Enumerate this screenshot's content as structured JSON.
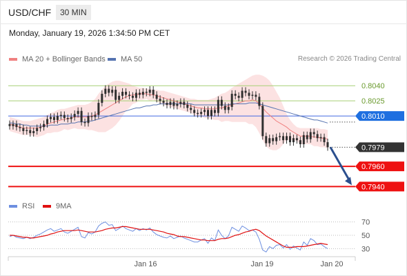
{
  "header": {
    "symbol": "USD/CHF",
    "timeframe": "30 MIN",
    "datetime": "Monday, January 19, 2026 1:34:50 PM CET",
    "credit": "Research © 2026 Trading Central"
  },
  "colors": {
    "bollinger_line": "#f08080",
    "bollinger_band": "#fbd8d8",
    "ma50": "#5573b0",
    "candle": "#2f2f2f",
    "support_line": "#ee1111",
    "pivot_line": "#4169e1",
    "green_line": "#a6cf74",
    "arrow": "#2b4f8e",
    "rsi": "#6d8fe0",
    "rsi_ma": "#e01010"
  },
  "chart_data": [
    {
      "type": "candlestick",
      "legend": [
        {
          "name": "MA 20 + Bollinger Bands",
          "color": "#f08080"
        },
        {
          "name": "MA 50",
          "color": "#5573b0"
        }
      ],
      "x_ticks": [
        "Jan 16",
        "Jan 19",
        "Jan 20"
      ],
      "ylim": [
        0.793,
        0.806
      ],
      "levels": [
        {
          "value": 0.804,
          "label": "0.8040",
          "kind": "resistance"
        },
        {
          "value": 0.8025,
          "label": "0.8025",
          "kind": "resistance"
        },
        {
          "value": 0.801,
          "label": "0.8010",
          "kind": "pivot"
        },
        {
          "value": 0.7979,
          "label": "0.7979",
          "kind": "last"
        },
        {
          "value": 0.796,
          "label": "0.7960",
          "kind": "support"
        },
        {
          "value": 0.794,
          "label": "0.7940",
          "kind": "support"
        }
      ],
      "forecast_arrow": {
        "from": 0.7979,
        "to": 0.794
      },
      "close": [
        0.8,
        0.8002,
        0.7999,
        0.7998,
        0.7995,
        0.7996,
        0.7993,
        0.7995,
        0.7998,
        0.7999,
        0.8002,
        0.8007,
        0.8009,
        0.8006,
        0.801,
        0.8011,
        0.8008,
        0.8007,
        0.8009,
        0.8012,
        0.8015,
        0.8004,
        0.8003,
        0.801,
        0.8009,
        0.8011,
        0.8023,
        0.8032,
        0.8037,
        0.8033,
        0.8036,
        0.8026,
        0.803,
        0.8034,
        0.8031,
        0.803,
        0.8028,
        0.8033,
        0.8031,
        0.8034,
        0.8033,
        0.8036,
        0.8031,
        0.8027,
        0.8025,
        0.8023,
        0.8021,
        0.8024,
        0.802,
        0.8022,
        0.8024,
        0.8021,
        0.8018,
        0.8016,
        0.8013,
        0.8012,
        0.8014,
        0.8016,
        0.801,
        0.8016,
        0.8013,
        0.8026,
        0.802,
        0.8016,
        0.8019,
        0.8032,
        0.803,
        0.8028,
        0.8035,
        0.8033,
        0.803,
        0.8031,
        0.8029,
        0.802,
        0.799,
        0.7983,
        0.7988,
        0.7985,
        0.7989,
        0.799,
        0.7986,
        0.799,
        0.7984,
        0.7988,
        0.7986,
        0.7982,
        0.7991,
        0.7987,
        0.7994,
        0.7992,
        0.7988,
        0.7989,
        0.7984,
        0.7979
      ],
      "ma20": [
        0.8002,
        0.8001,
        0.8,
        0.7999,
        0.7998,
        0.7998,
        0.7998,
        0.7998,
        0.7998,
        0.7999,
        0.8,
        0.8002,
        0.8003,
        0.8004,
        0.8005,
        0.8006,
        0.8007,
        0.8007,
        0.8008,
        0.8009,
        0.8009,
        0.8009,
        0.8009,
        0.8009,
        0.801,
        0.8011,
        0.8013,
        0.8015,
        0.8017,
        0.8019,
        0.8021,
        0.8023,
        0.8025,
        0.8027,
        0.8029,
        0.803,
        0.8031,
        0.8031,
        0.8032,
        0.8032,
        0.8032,
        0.8031,
        0.8031,
        0.803,
        0.8029,
        0.8028,
        0.8027,
        0.8026,
        0.8025,
        0.8024,
        0.8023,
        0.8022,
        0.8021,
        0.802,
        0.8019,
        0.8018,
        0.8018,
        0.8017,
        0.8017,
        0.8017,
        0.8017,
        0.8018,
        0.8018,
        0.8019,
        0.802,
        0.8021,
        0.8022,
        0.8023,
        0.8024,
        0.8025,
        0.8025,
        0.8026,
        0.8025,
        0.8022,
        0.8018,
        0.8014,
        0.8011,
        0.8008,
        0.8005,
        0.8003,
        0.8001,
        0.7999,
        0.7996,
        0.7994,
        0.7992,
        0.799,
        0.799,
        0.799,
        0.799,
        0.7989,
        0.7989,
        0.7988,
        0.7988,
        0.7987
      ],
      "bb_upper": [
        0.8009,
        0.8008,
        0.8007,
        0.8006,
        0.8005,
        0.8005,
        0.8005,
        0.8006,
        0.8007,
        0.8008,
        0.8009,
        0.8011,
        0.8013,
        0.8014,
        0.8016,
        0.8017,
        0.8017,
        0.8018,
        0.8019,
        0.802,
        0.8021,
        0.8021,
        0.8021,
        0.8022,
        0.8024,
        0.8027,
        0.8032,
        0.8036,
        0.804,
        0.8042,
        0.8044,
        0.8045,
        0.8045,
        0.8044,
        0.8043,
        0.8042,
        0.804,
        0.8039,
        0.8038,
        0.8038,
        0.8037,
        0.8037,
        0.8036,
        0.8036,
        0.8035,
        0.8035,
        0.8034,
        0.8033,
        0.8032,
        0.8031,
        0.803,
        0.8029,
        0.8028,
        0.8027,
        0.8027,
        0.8026,
        0.8026,
        0.8026,
        0.8026,
        0.8027,
        0.8028,
        0.803,
        0.8032,
        0.8033,
        0.8035,
        0.8038,
        0.804,
        0.8042,
        0.8044,
        0.8046,
        0.8048,
        0.805,
        0.8051,
        0.8051,
        0.805,
        0.8048,
        0.8045,
        0.804,
        0.8034,
        0.8028,
        0.802,
        0.8012,
        0.8006,
        0.8002,
        0.7999,
        0.7998,
        0.7998,
        0.7998,
        0.7998,
        0.7998,
        0.7998,
        0.7997,
        0.7997,
        0.7996
      ],
      "bb_lower": [
        0.7995,
        0.7994,
        0.7993,
        0.7992,
        0.7991,
        0.7991,
        0.7991,
        0.799,
        0.7989,
        0.799,
        0.7991,
        0.7993,
        0.7993,
        0.7994,
        0.7994,
        0.7995,
        0.7997,
        0.7996,
        0.7997,
        0.7998,
        0.7997,
        0.7997,
        0.7997,
        0.7996,
        0.7996,
        0.7995,
        0.7994,
        0.7994,
        0.7994,
        0.7996,
        0.7998,
        0.8001,
        0.8005,
        0.801,
        0.8015,
        0.8018,
        0.8022,
        0.8023,
        0.8026,
        0.8026,
        0.8027,
        0.8025,
        0.8026,
        0.8024,
        0.8023,
        0.8021,
        0.802,
        0.8019,
        0.8018,
        0.8017,
        0.8016,
        0.8015,
        0.8014,
        0.8013,
        0.8011,
        0.801,
        0.801,
        0.8008,
        0.8008,
        0.8007,
        0.8006,
        0.8006,
        0.8004,
        0.8005,
        0.8005,
        0.8004,
        0.8004,
        0.8004,
        0.8004,
        0.8004,
        0.8002,
        0.8002,
        0.7999,
        0.7993,
        0.7986,
        0.798,
        0.7977,
        0.7976,
        0.7976,
        0.7978,
        0.7982,
        0.7986,
        0.7986,
        0.7986,
        0.7985,
        0.7982,
        0.7982,
        0.7982,
        0.7982,
        0.798,
        0.798,
        0.7979,
        0.7979,
        0.7978
      ],
      "ma50": [
        0.8003,
        0.8003,
        0.8002,
        0.8002,
        0.8001,
        0.8001,
        0.8,
        0.8,
        0.8,
        0.8,
        0.8,
        0.8,
        0.8001,
        0.8001,
        0.8001,
        0.8002,
        0.8002,
        0.8002,
        0.8003,
        0.8003,
        0.8004,
        0.8004,
        0.8004,
        0.8005,
        0.8005,
        0.8006,
        0.8007,
        0.8008,
        0.8009,
        0.801,
        0.8011,
        0.8012,
        0.8013,
        0.8014,
        0.8015,
        0.8016,
        0.8017,
        0.8018,
        0.8018,
        0.8019,
        0.802,
        0.802,
        0.8021,
        0.8021,
        0.8022,
        0.8022,
        0.8022,
        0.8022,
        0.8022,
        0.8022,
        0.8022,
        0.8022,
        0.8022,
        0.8022,
        0.8021,
        0.8021,
        0.8021,
        0.8021,
        0.8021,
        0.8021,
        0.8021,
        0.8021,
        0.8021,
        0.8021,
        0.8021,
        0.8022,
        0.8022,
        0.8022,
        0.8022,
        0.8022,
        0.8023,
        0.8023,
        0.8023,
        0.8022,
        0.8021,
        0.802,
        0.8019,
        0.8018,
        0.8017,
        0.8016,
        0.8015,
        0.8014,
        0.8013,
        0.8012,
        0.8011,
        0.801,
        0.8009,
        0.8008,
        0.8007,
        0.8006,
        0.8006,
        0.8005,
        0.8004,
        0.8003
      ]
    },
    {
      "type": "line",
      "legend": [
        {
          "name": "RSI",
          "color": "#6d8fe0"
        },
        {
          "name": "9MA",
          "color": "#e01010"
        }
      ],
      "y_ticks": [
        70,
        50,
        30
      ],
      "ylim": [
        20,
        80
      ],
      "rsi": [
        48,
        50,
        47,
        46,
        45,
        47,
        45,
        47,
        50,
        52,
        55,
        58,
        60,
        56,
        58,
        60,
        55,
        53,
        56,
        59,
        62,
        48,
        46,
        54,
        52,
        55,
        64,
        68,
        70,
        65,
        66,
        57,
        60,
        64,
        60,
        58,
        56,
        60,
        57,
        60,
        58,
        61,
        55,
        51,
        49,
        47,
        46,
        49,
        45,
        47,
        49,
        46,
        44,
        42,
        40,
        40,
        43,
        45,
        38,
        46,
        42,
        58,
        50,
        45,
        49,
        62,
        59,
        56,
        64,
        61,
        57,
        58,
        55,
        44,
        28,
        25,
        33,
        30,
        35,
        36,
        31,
        36,
        29,
        34,
        31,
        28,
        40,
        35,
        45,
        42,
        36,
        37,
        33,
        30
      ],
      "ma9": [
        50,
        50,
        49,
        48,
        47,
        47,
        46,
        46,
        47,
        48,
        49,
        50,
        52,
        53,
        55,
        56,
        57,
        57,
        57,
        57,
        58,
        57,
        56,
        55,
        55,
        55,
        56,
        57,
        59,
        60,
        61,
        61,
        62,
        63,
        63,
        62,
        61,
        60,
        59,
        59,
        59,
        59,
        58,
        57,
        56,
        55,
        53,
        52,
        51,
        49,
        48,
        48,
        47,
        46,
        45,
        44,
        43,
        43,
        42,
        42,
        42,
        44,
        45,
        45,
        46,
        48,
        50,
        51,
        53,
        55,
        56,
        58,
        59,
        57,
        53,
        49,
        46,
        43,
        40,
        37,
        34,
        32,
        32,
        32,
        33,
        33,
        33,
        34,
        35,
        36,
        37,
        38,
        37,
        36
      ]
    }
  ]
}
